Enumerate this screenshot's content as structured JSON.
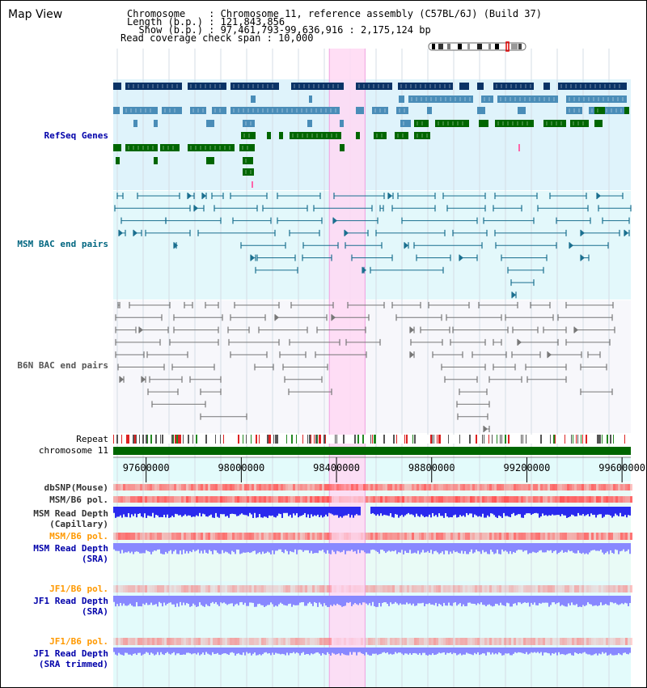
{
  "view_title": "Map View",
  "header": {
    "lines": [
      "Chromosome    : Chromosome 11, reference assembly (C57BL/6J) (Build 37)",
      "Length (b.p.) : 121,843,856",
      "  Show (b.p.) : 97,461,793-99,636,916 : 2,175,124 bp",
      "Read coverage check span : 10,000"
    ]
  },
  "tracks": {
    "refseq": "RefSeq Genes",
    "msm_bac": "MSM BAC end pairs",
    "b6n_bac": "B6N BAC end pairs",
    "repeat": "Repeat",
    "chromosome": "chromosome 11",
    "dbsnp": "dbSNP(Mouse)",
    "msm_b6_pol": "MSM/B6 pol.",
    "msm_depth_cap": "MSM Read Depth\n(Capillary)",
    "msm_b6_pol_2": "MSM/B6 pol.",
    "msm_depth_sra": "MSM Read Depth\n(SRA)",
    "jf1_b6_pol": "JF1/B6 pol.",
    "jf1_depth_sra": "JF1 Read Depth\n(SRA)",
    "jf1_b6_pol_2": "JF1/B6 pol.",
    "jf1_depth_sra_trim": "JF1 Read Depth\n(SRA trimmed)"
  },
  "axis": {
    "view_start": 97461793,
    "view_end": 99636916,
    "ticks": [
      {
        "pos": 97600000,
        "label": "97600000"
      },
      {
        "pos": 98000000,
        "label": "98000000"
      },
      {
        "pos": 98400000,
        "label": "98400000"
      },
      {
        "pos": 98800000,
        "label": "98800000"
      },
      {
        "pos": 99200000,
        "label": "99200000"
      },
      {
        "pos": 99600000,
        "label": "99600000"
      }
    ],
    "highlight_start": 98370000,
    "highlight_end": 98520000
  },
  "colors": {
    "refseq_bg": "#dff3fb",
    "msm_bg": "#e3f8fb",
    "b6n_bg": "#f7f7fb",
    "depth_bg": "#e9fbf6",
    "jf1_bg": "#e3fbfb",
    "highlight": "#ffd8f3",
    "gene_dark": "#0a3366",
    "gene_mid": "#4a8db8",
    "gene_green": "#006600",
    "msm_line": "#1a6f8f",
    "b6n_line": "#777777",
    "chrom_bar": "#006600",
    "depth_blue": "#2a2aee",
    "depth_light": "#8888ff",
    "pol_red": "#ff5555"
  }
}
